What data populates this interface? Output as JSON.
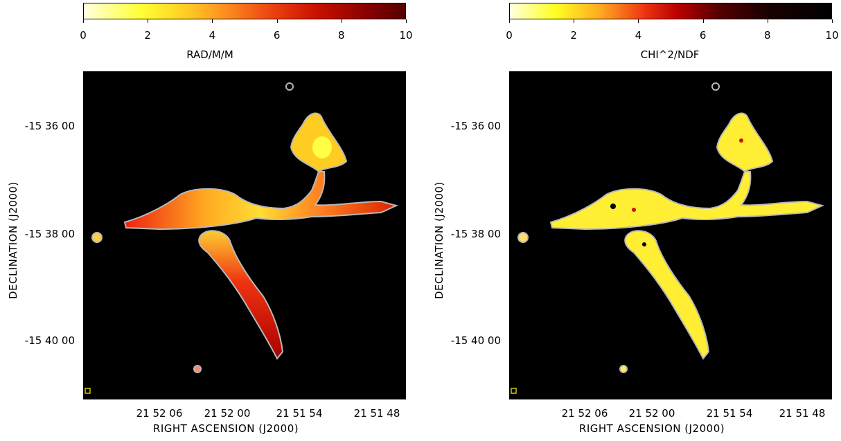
{
  "colors": {
    "background": "#000000",
    "contour": "#b8b8b8",
    "cmap_left": [
      "#ffffe0",
      "#ffff33",
      "#ffcc22",
      "#ff9922",
      "#ee4411",
      "#cc1100",
      "#880000",
      "#550000"
    ],
    "cmap_right": [
      "#ffffe0",
      "#ffff22",
      "#ffaa22",
      "#ee3311",
      "#bb0000",
      "#550000",
      "#1a0000",
      "#000000"
    ]
  },
  "left": {
    "colorbar": {
      "ticks": [
        "0",
        "2",
        "4",
        "6",
        "8",
        "10"
      ],
      "title": "RAD/M/M",
      "range": [
        0,
        10
      ]
    },
    "x_ticks": [
      "21 52 06",
      "21 52 00",
      "21 51 54",
      "21 51 48"
    ],
    "xlabel": "RIGHT ASCENSION  (J2000)",
    "y_ticks": [
      "-15 36 00",
      "-15 38 00",
      "-15 40 00"
    ],
    "ylabel": "DECLINATION  (J2000)"
  },
  "right": {
    "colorbar": {
      "ticks": [
        "0",
        "2",
        "4",
        "6",
        "8",
        "10"
      ],
      "title": "CHI^2/NDF",
      "range": [
        0,
        10
      ]
    },
    "x_ticks": [
      "21 52 06",
      "21 52 00",
      "21 51 54",
      "21 51 48"
    ],
    "xlabel": "RIGHT ASCENSION  (J2000)",
    "y_ticks": [
      "-15 36 00",
      "-15 38 00",
      "-15 40 00"
    ],
    "ylabel": "DECLINATION  (J2000)"
  }
}
